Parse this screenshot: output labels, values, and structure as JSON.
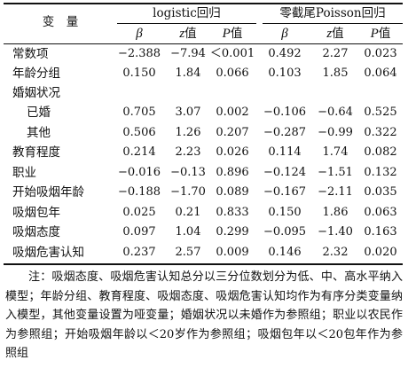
{
  "header": {
    "variable": "变　量",
    "group1": "logistic回归",
    "group2": "零截尾Poisson回归",
    "cols": [
      {
        "sym": "β",
        "suffix": ""
      },
      {
        "sym": "z",
        "suffix": "值"
      },
      {
        "sym": "P",
        "suffix": "值"
      },
      {
        "sym": "β",
        "suffix": ""
      },
      {
        "sym": "z",
        "suffix": "值"
      },
      {
        "sym": "P",
        "suffix": "值"
      }
    ]
  },
  "rows": [
    {
      "label": "常数项",
      "indent": false,
      "values": [
        "−2.388",
        "−7.94",
        "＜0.001",
        "0.492",
        "2.27",
        "0.023"
      ]
    },
    {
      "label": "年龄分组",
      "indent": false,
      "values": [
        "0.150",
        "1.84",
        "0.066",
        "0.103",
        "1.85",
        "0.064"
      ]
    },
    {
      "label": "婚姻状况",
      "indent": false,
      "values": [
        "",
        "",
        "",
        "",
        "",
        ""
      ]
    },
    {
      "label": "已婚",
      "indent": true,
      "values": [
        "0.705",
        "3.07",
        "0.002",
        "−0.106",
        "−0.64",
        "0.525"
      ]
    },
    {
      "label": "其他",
      "indent": true,
      "values": [
        "0.506",
        "1.26",
        "0.207",
        "−0.287",
        "−0.99",
        "0.322"
      ]
    },
    {
      "label": "教育程度",
      "indent": false,
      "values": [
        "0.214",
        "2.23",
        "0.026",
        "0.114",
        "1.74",
        "0.082"
      ]
    },
    {
      "label": "职业",
      "indent": false,
      "values": [
        "−0.016",
        "−0.13",
        "0.896",
        "−0.124",
        "−1.51",
        "0.132"
      ]
    },
    {
      "label": "开始吸烟年龄",
      "indent": false,
      "values": [
        "−0.188",
        "−1.70",
        "0.089",
        "−0.167",
        "−2.11",
        "0.035"
      ]
    },
    {
      "label": "吸烟包年",
      "indent": false,
      "values": [
        "0.025",
        "0.21",
        "0.833",
        "0.150",
        "1.86",
        "0.063"
      ]
    },
    {
      "label": "吸烟态度",
      "indent": false,
      "values": [
        "0.097",
        "1.04",
        "0.299",
        "−0.095",
        "−1.40",
        "0.163"
      ]
    },
    {
      "label": "吸烟危害认知",
      "indent": false,
      "values": [
        "0.237",
        "2.57",
        "0.009",
        "0.146",
        "2.32",
        "0.020"
      ]
    }
  ],
  "note": "注：吸烟态度、吸烟危害认知总分以三分位数划分为低、中、高水平纳入模型；年龄分组、教育程度、吸烟态度、吸烟危害认知均作为有序分类变量纳入模型，其他变量设置为哑变量；婚姻状况以未婚作为参照组；职业以农民作为参照组；开始吸烟年龄以＜20岁作为参照组；吸烟包年以＜20包年作为参照组"
}
